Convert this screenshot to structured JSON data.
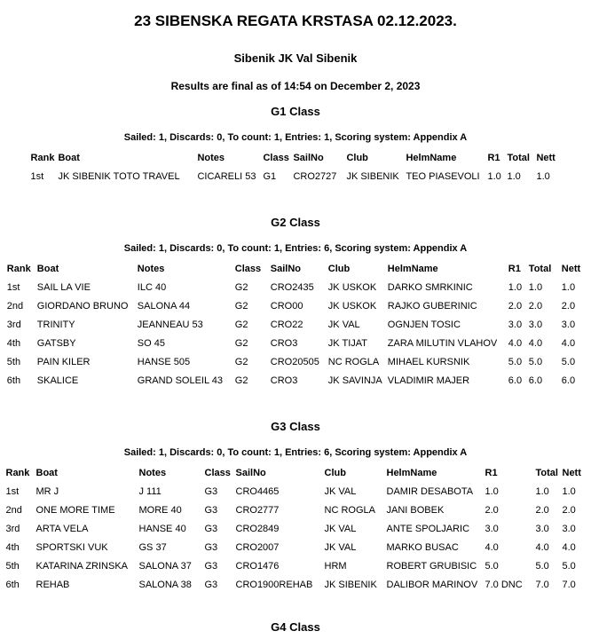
{
  "header": {
    "title": "23 SIBENSKA REGATA KRSTASA 02.12.2023.",
    "subtitle": "Sibenik JK Val Sibenik",
    "status_line": "Results are final as of 14:54 on December 2, 2023"
  },
  "colors": {
    "text": "#000000",
    "background": "#ffffff"
  },
  "sections": [
    {
      "heading": "G1 Class",
      "summary": "Sailed: 1, Discards: 0, To count: 1, Entries: 1, Scoring system: Appendix A",
      "columns": [
        "Rank",
        "Boat",
        "Notes",
        "Class",
        "SailNo",
        "Club",
        "HelmName",
        "R1",
        "Total",
        "Nett"
      ],
      "rows": [
        [
          "1st",
          "JK SIBENIK TOTO TRAVEL",
          "CICARELI 53",
          "G1",
          "CRO2727",
          "JK SIBENIK",
          "TEO PIASEVOLI",
          "1.0",
          "1.0",
          "1.0"
        ]
      ]
    },
    {
      "heading": "G2 Class",
      "summary": "Sailed: 1, Discards: 0, To count: 1, Entries: 6, Scoring system: Appendix A",
      "columns": [
        "Rank",
        "Boat",
        "Notes",
        "Class",
        "SailNo",
        "Club",
        "HelmName",
        "R1",
        "Total",
        "Nett"
      ],
      "rows": [
        [
          "1st",
          "SAIL LA VIE",
          "ILC 40",
          "G2",
          "CRO2435",
          "JK USKOK",
          "DARKO SMRKINIC",
          "1.0",
          "1.0",
          "1.0"
        ],
        [
          "2nd",
          "GIORDANO BRUNO",
          "SALONA 44",
          "G2",
          "CRO00",
          "JK USKOK",
          "RAJKO GUBERINIC",
          "2.0",
          "2.0",
          "2.0"
        ],
        [
          "3rd",
          "TRINITY",
          "JEANNEAU 53",
          "G2",
          "CRO22",
          "JK VAL",
          "OGNJEN TOSIC",
          "3.0",
          "3.0",
          "3.0"
        ],
        [
          "4th",
          "GATSBY",
          "SO 45",
          "G2",
          "CRO3",
          "JK TIJAT",
          "ZARA MILUTIN VLAHOV",
          "4.0",
          "4.0",
          "4.0"
        ],
        [
          "5th",
          "PAIN KILER",
          "HANSE 505",
          "G2",
          "CRO20505",
          "NC ROGLA",
          "MIHAEL KURSNIK",
          "5.0",
          "5.0",
          "5.0"
        ],
        [
          "6th",
          "SKALICE",
          "GRAND SOLEIL 43",
          "G2",
          "CRO3",
          "JK SAVINJA",
          "VLADIMIR MAJER",
          "6.0",
          "6.0",
          "6.0"
        ]
      ]
    },
    {
      "heading": "G3 Class",
      "summary": "Sailed: 1, Discards: 0, To count: 1, Entries: 6, Scoring system: Appendix A",
      "columns": [
        "Rank",
        "Boat",
        "Notes",
        "Class",
        "SailNo",
        "Club",
        "HelmName",
        "R1",
        "Total",
        "Nett"
      ],
      "rows": [
        [
          "1st",
          "MR J",
          "J 111",
          "G3",
          "CRO4465",
          "JK VAL",
          "DAMIR DESABOTA",
          "1.0",
          "1.0",
          "1.0"
        ],
        [
          "2nd",
          "ONE MORE TIME",
          "MORE 40",
          "G3",
          "CRO2777",
          "NC ROGLA",
          "JANI BOBEK",
          "2.0",
          "2.0",
          "2.0"
        ],
        [
          "3rd",
          "ARTA VELA",
          "HANSE 40",
          "G3",
          "CRO2849",
          "JK VAL",
          "ANTE SPOLJARIC",
          "3.0",
          "3.0",
          "3.0"
        ],
        [
          "4th",
          "SPORTSKI VUK",
          "GS 37",
          "G3",
          "CRO2007",
          "JK VAL",
          "MARKO BUSAC",
          "4.0",
          "4.0",
          "4.0"
        ],
        [
          "5th",
          "KATARINA ZRINSKA",
          "SALONA 37",
          "G3",
          "CRO1476",
          "HRM",
          "ROBERT GRUBISIC",
          "5.0",
          "5.0",
          "5.0"
        ],
        [
          "6th",
          "REHAB",
          "SALONA 38",
          "G3",
          "CRO1900REHAB",
          "JK SIBENIK",
          "DALIBOR MARINOV",
          "7.0 DNC",
          "7.0",
          "7.0"
        ]
      ]
    },
    {
      "heading": "G4 Class"
    }
  ]
}
